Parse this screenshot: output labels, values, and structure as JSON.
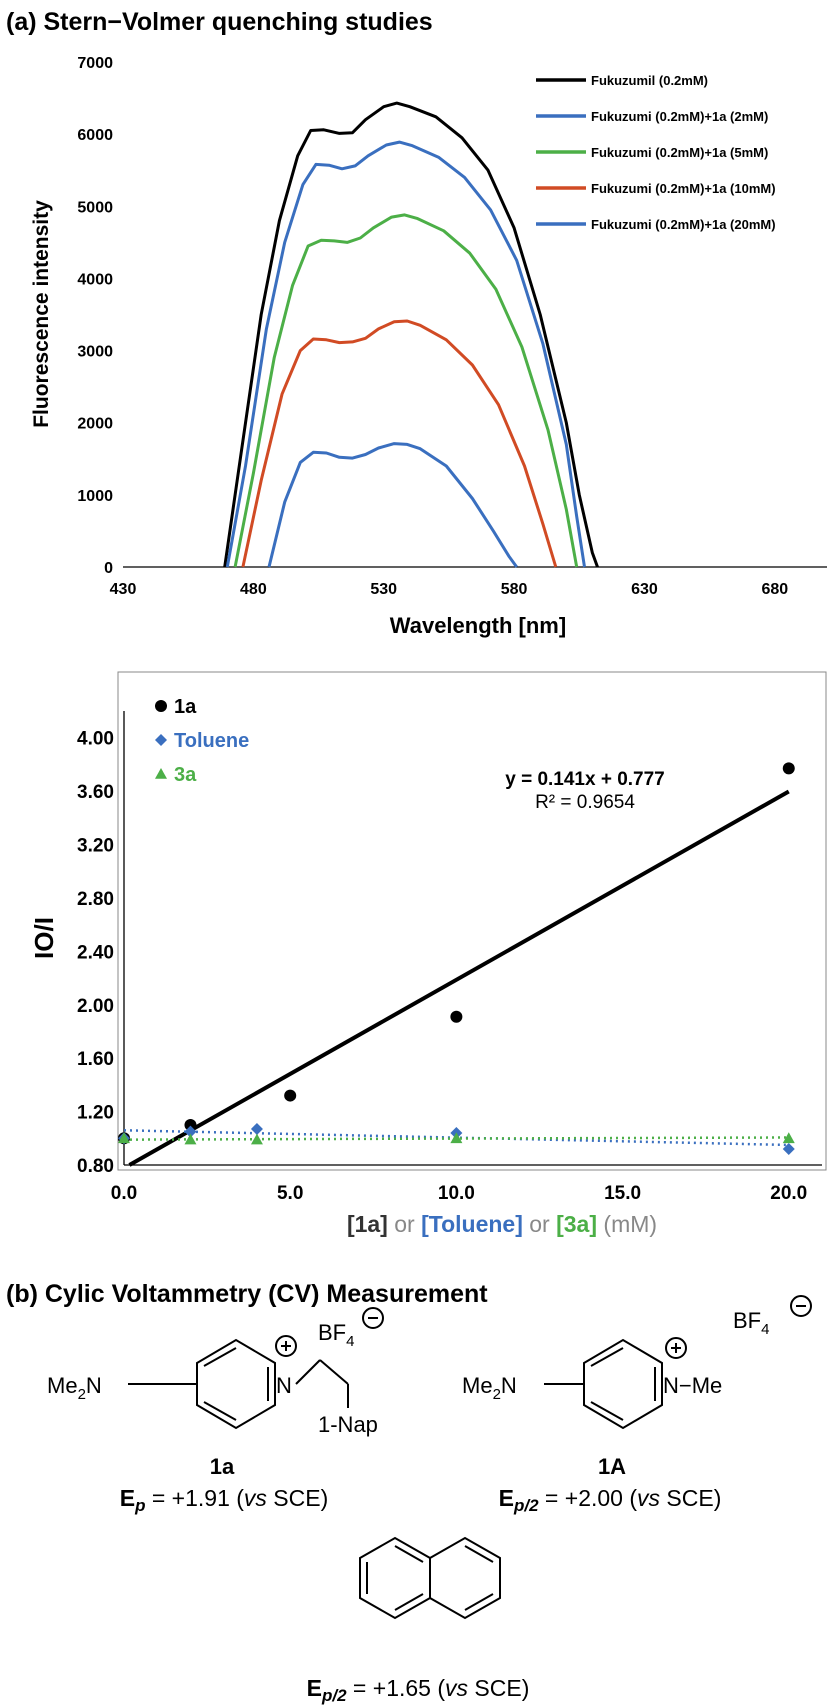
{
  "section_a": {
    "heading": "(a) Stern−Volmer quenching studies"
  },
  "section_b": {
    "heading": "(b) Cylic Voltammetry (CV) Measurement",
    "compound_1a": {
      "amine": "Me",
      "amine_sub": "2",
      "amine_end": "N",
      "counterion": "BF",
      "counterion_sub": "4",
      "substituent": "1-Nap",
      "label": "1a",
      "potential_symbol": "E",
      "potential_sub": "p",
      "potential_value": " = +1.91 (",
      "potential_vs": "vs",
      "potential_ref": " SCE)"
    },
    "compound_1A": {
      "amine": "Me",
      "amine_sub": "2",
      "amine_end": "N",
      "counterion": "BF",
      "counterion_sub": "4",
      "substituent": "N−Me",
      "label": "1A",
      "potential_symbol": "E",
      "potential_sub": "p/2",
      "potential_value": " = +2.00 (",
      "potential_vs": "vs",
      "potential_ref": " SCE)"
    },
    "naphthalene": {
      "potential_symbol": "E",
      "potential_sub": "p/2",
      "potential_value": " = +1.65 (",
      "potential_vs": "vs",
      "potential_ref": " SCE)"
    }
  },
  "chart_data": [
    {
      "type": "line",
      "xlabel": "Wavelength [nm]",
      "ylabel": "Fluorescence intensity",
      "xlim": [
        430,
        700
      ],
      "ylim": [
        0,
        7000
      ],
      "xticks": [
        430,
        480,
        530,
        580,
        630,
        680
      ],
      "yticks": [
        0,
        1000,
        2000,
        3000,
        4000,
        5000,
        6000,
        7000
      ],
      "grid": false,
      "legend_position": "top-right",
      "series": [
        {
          "name": "Fukuzumil (0.2mM)",
          "color": "#000000",
          "x": [
            469,
            475,
            483,
            490,
            497,
            502,
            507,
            513,
            518,
            523,
            530,
            535,
            540,
            550,
            560,
            570,
            580,
            590,
            600,
            605,
            610,
            612
          ],
          "y": [
            0,
            1500,
            3500,
            4800,
            5700,
            6050,
            6060,
            6010,
            6020,
            6200,
            6380,
            6430,
            6380,
            6240,
            5950,
            5500,
            4700,
            3500,
            2000,
            1000,
            200,
            0
          ]
        },
        {
          "name": "Fukuzumi (0.2mM)+1a (2mM)",
          "color": "#3a6fbf",
          "x": [
            470,
            477,
            485,
            492,
            499,
            504,
            509,
            514,
            519,
            524,
            531,
            536,
            541,
            551,
            561,
            571,
            581,
            591,
            600,
            604,
            607
          ],
          "y": [
            0,
            1400,
            3300,
            4500,
            5300,
            5580,
            5570,
            5520,
            5560,
            5700,
            5850,
            5890,
            5840,
            5680,
            5400,
            4950,
            4250,
            3100,
            1700,
            700,
            0
          ]
        },
        {
          "name": "Fukuzumi (0.2mM)+1a (5mM)",
          "color": "#4caf47",
          "x": [
            473,
            480,
            488,
            495,
            501,
            506,
            511,
            516,
            521,
            526,
            533,
            538,
            543,
            553,
            563,
            573,
            583,
            593,
            600,
            604
          ],
          "y": [
            0,
            1300,
            2900,
            3900,
            4450,
            4530,
            4520,
            4500,
            4560,
            4700,
            4850,
            4880,
            4830,
            4660,
            4350,
            3850,
            3050,
            1900,
            800,
            0
          ]
        },
        {
          "name": "Fukuzumi (0.2mM)+1a (10mM)",
          "color": "#d14b24",
          "x": [
            476,
            483,
            491,
            498,
            503,
            508,
            513,
            518,
            523,
            528,
            534,
            539,
            544,
            554,
            564,
            574,
            584,
            591,
            596
          ],
          "y": [
            0,
            1200,
            2400,
            3000,
            3160,
            3150,
            3110,
            3120,
            3170,
            3300,
            3400,
            3410,
            3350,
            3150,
            2800,
            2250,
            1400,
            600,
            0
          ]
        },
        {
          "name": "Fukuzumi (0.2mM)+1a (20mM)",
          "color": "#3a6fbf",
          "x": [
            486,
            492,
            498,
            503,
            508,
            513,
            518,
            523,
            528,
            534,
            539,
            544,
            554,
            564,
            572,
            578,
            581
          ],
          "y": [
            0,
            900,
            1450,
            1590,
            1580,
            1520,
            1510,
            1560,
            1650,
            1710,
            1700,
            1640,
            1400,
            950,
            500,
            150,
            0
          ]
        }
      ]
    },
    {
      "type": "scatter",
      "xlabel_parts": [
        "[1a]",
        " or ",
        "[Toluene]",
        " or ",
        "[3a]",
        " (mM)"
      ],
      "ylabel": "IO/I",
      "xlim": [
        0,
        21
      ],
      "ylim": [
        0.8,
        4.2
      ],
      "xticks": [
        0,
        5,
        10,
        15,
        20
      ],
      "xtick_labels": [
        "0.0",
        "5.0",
        "10.0",
        "15.0",
        "20.0"
      ],
      "yticks": [
        0.8,
        1.2,
        1.6,
        2.0,
        2.4,
        2.8,
        3.2,
        3.6,
        4.0
      ],
      "ytick_labels": [
        "0.80",
        "1.20",
        "1.60",
        "2.00",
        "2.40",
        "2.80",
        "3.20",
        "3.60",
        "4.00"
      ],
      "grid": false,
      "legend_position": "top-left",
      "series": [
        {
          "name": "1a",
          "marker": "circle",
          "color": "#000000",
          "x": [
            0,
            2,
            5,
            10,
            20
          ],
          "y": [
            1.0,
            1.1,
            1.32,
            1.91,
            3.77
          ],
          "fit": {
            "slope": 0.141,
            "intercept": 0.777,
            "style": "solid"
          }
        },
        {
          "name": "Toluene",
          "marker": "diamond",
          "color": "#3a6fbf",
          "x": [
            0,
            2,
            4,
            10,
            20
          ],
          "y": [
            1.0,
            1.05,
            1.07,
            1.04,
            0.92
          ],
          "fit": {
            "slope": -0.0055,
            "intercept": 1.06,
            "style": "dotted"
          }
        },
        {
          "name": "3a",
          "marker": "triangle",
          "color": "#4caf47",
          "x": [
            0,
            2,
            4,
            10,
            20
          ],
          "y": [
            1.0,
            0.99,
            0.99,
            1.0,
            1.0
          ],
          "fit": {
            "slope": 0.0008,
            "intercept": 0.99,
            "style": "dotted"
          }
        }
      ],
      "annotation": {
        "equation": "y = 0.141x + 0.777",
        "r_squared": "R² = 0.9654"
      }
    }
  ]
}
